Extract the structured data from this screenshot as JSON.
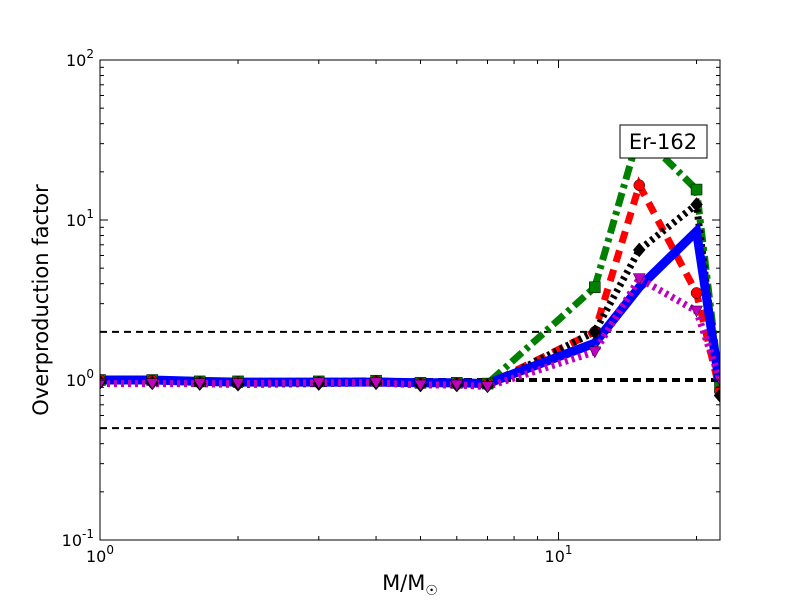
{
  "chart_data": {
    "type": "line",
    "xscale": "log",
    "yscale": "log",
    "xlim": [
      1,
      22.5
    ],
    "ylim": [
      0.1,
      100
    ],
    "xlabel": "M/M",
    "xlabel_subscript": "☉",
    "ylabel": "Overproduction factor",
    "x_ticks": [
      {
        "value": 1,
        "base": "10",
        "exp": "0"
      },
      {
        "value": 10,
        "base": "10",
        "exp": "1"
      }
    ],
    "y_ticks": [
      {
        "value": 0.1,
        "base": "10",
        "exp": "-1"
      },
      {
        "value": 1,
        "base": "10",
        "exp": "0"
      },
      {
        "value": 10,
        "base": "10",
        "exp": "1"
      },
      {
        "value": 100,
        "base": "10",
        "exp": "2"
      }
    ],
    "annotation": "Er-162",
    "reference_lines": [
      {
        "y": 2.0,
        "style": "dashed",
        "width": "thin"
      },
      {
        "y": 1.0,
        "style": "dashed",
        "width": "thick"
      },
      {
        "y": 0.5,
        "style": "dashed",
        "width": "thin"
      }
    ],
    "series": [
      {
        "color": "#008000",
        "marker": "square",
        "linestyle": "dashdot",
        "thick": false,
        "x": [
          1,
          1.3,
          1.65,
          2,
          3,
          4,
          5,
          6,
          7,
          12,
          15,
          20,
          22.5
        ],
        "y": [
          1.0,
          1.0,
          0.98,
          0.98,
          0.98,
          0.99,
          0.96,
          0.96,
          0.95,
          3.8,
          35,
          15.5,
          0.9
        ]
      },
      {
        "color": "#ff0000",
        "marker": "circle",
        "linestyle": "dashed",
        "thick": false,
        "x": [
          1,
          1.3,
          1.65,
          2,
          3,
          4,
          5,
          6,
          7,
          12,
          15,
          20,
          22.5
        ],
        "y": [
          1.0,
          0.99,
          0.97,
          0.97,
          0.97,
          0.98,
          0.95,
          0.95,
          0.94,
          2.0,
          16.5,
          3.5,
          0.85
        ]
      },
      {
        "color": "#000000",
        "marker": "diamond",
        "linestyle": "dotted",
        "thick": false,
        "x": [
          1,
          1.3,
          1.65,
          2,
          3,
          4,
          5,
          6,
          7,
          12,
          15,
          20,
          22.5
        ],
        "y": [
          0.97,
          0.96,
          0.95,
          0.94,
          0.95,
          0.96,
          0.93,
          0.93,
          0.92,
          2.0,
          6.5,
          12.5,
          0.8
        ]
      },
      {
        "color": "#0000ff",
        "marker": "none",
        "linestyle": "solid",
        "thick": true,
        "x": [
          1,
          1.3,
          1.65,
          2,
          3,
          4,
          5,
          6,
          7,
          12,
          15,
          20,
          22.5
        ],
        "y": [
          1.0,
          1.0,
          0.98,
          0.97,
          0.97,
          0.97,
          0.96,
          0.96,
          0.95,
          1.7,
          3.8,
          8.5,
          0.9
        ]
      },
      {
        "color": "#bf00bf",
        "marker": "triangle-down",
        "linestyle": "dotted",
        "thick": false,
        "x": [
          1,
          1.3,
          1.65,
          2,
          3,
          4,
          5,
          6,
          7,
          12,
          15,
          20,
          22.5
        ],
        "y": [
          0.95,
          0.95,
          0.95,
          0.95,
          0.96,
          0.96,
          0.93,
          0.93,
          0.91,
          1.5,
          4.3,
          2.7,
          1.0
        ]
      }
    ]
  }
}
